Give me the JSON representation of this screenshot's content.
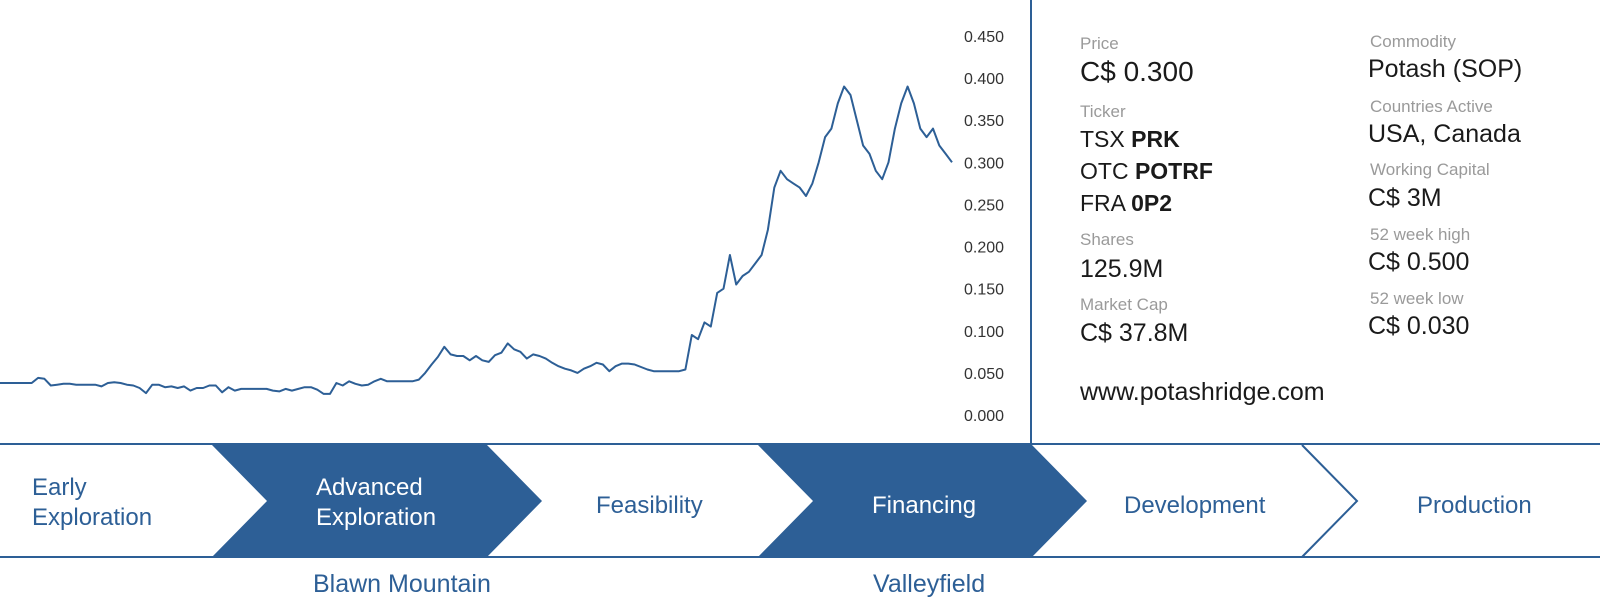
{
  "chart_data": {
    "type": "line",
    "title": "",
    "xlabel": "",
    "ylabel": "",
    "ylim": [
      0,
      0.45
    ],
    "yticks": [
      "0.450",
      "0.400",
      "0.350",
      "0.300",
      "0.250",
      "0.200",
      "0.150",
      "0.100",
      "0.050",
      "0.000"
    ],
    "grid": false,
    "color": "#2d5f96",
    "x": [
      0,
      1,
      2,
      3,
      4,
      5,
      6,
      7,
      8,
      9,
      10,
      11,
      12,
      13,
      14,
      15,
      16,
      17,
      18,
      19,
      20,
      21,
      22,
      23,
      24,
      25,
      26,
      27,
      28,
      29,
      30,
      31,
      32,
      33,
      34,
      35,
      36,
      37,
      38,
      39,
      40,
      41,
      42,
      43,
      44,
      45,
      46,
      47,
      48,
      49,
      50,
      51,
      52,
      53,
      54,
      55,
      56,
      57,
      58,
      59,
      60,
      61,
      62,
      63,
      64,
      65,
      66,
      67,
      68,
      69,
      70,
      71,
      72,
      73,
      74,
      75,
      76,
      77,
      78,
      79,
      80,
      81,
      82,
      83,
      84,
      85,
      86,
      87,
      88,
      89,
      90,
      91,
      92,
      93,
      94,
      95,
      96,
      97,
      98,
      99,
      100,
      101,
      102,
      103,
      104,
      105,
      106,
      107,
      108,
      109,
      110,
      111,
      112,
      113,
      114,
      115,
      116,
      117,
      118,
      119,
      120,
      121,
      122,
      123,
      124,
      125,
      126,
      127,
      128,
      129,
      130,
      131,
      132,
      133,
      134,
      135,
      136,
      137,
      138,
      139,
      140,
      141,
      142,
      143,
      144,
      145,
      146,
      147,
      148,
      149,
      150
    ],
    "values": [
      0.038,
      0.038,
      0.038,
      0.038,
      0.038,
      0.038,
      0.044,
      0.043,
      0.035,
      0.036,
      0.037,
      0.037,
      0.036,
      0.036,
      0.036,
      0.036,
      0.034,
      0.038,
      0.039,
      0.038,
      0.036,
      0.035,
      0.032,
      0.026,
      0.036,
      0.036,
      0.033,
      0.034,
      0.032,
      0.034,
      0.029,
      0.032,
      0.032,
      0.035,
      0.035,
      0.027,
      0.033,
      0.029,
      0.031,
      0.031,
      0.031,
      0.031,
      0.031,
      0.029,
      0.028,
      0.031,
      0.029,
      0.031,
      0.033,
      0.033,
      0.03,
      0.025,
      0.025,
      0.038,
      0.035,
      0.04,
      0.037,
      0.035,
      0.036,
      0.04,
      0.043,
      0.04,
      0.04,
      0.04,
      0.04,
      0.04,
      0.042,
      0.05,
      0.06,
      0.069,
      0.081,
      0.072,
      0.07,
      0.07,
      0.065,
      0.07,
      0.065,
      0.063,
      0.071,
      0.074,
      0.085,
      0.078,
      0.075,
      0.067,
      0.072,
      0.07,
      0.067,
      0.062,
      0.058,
      0.055,
      0.053,
      0.05,
      0.055,
      0.058,
      0.062,
      0.06,
      0.052,
      0.058,
      0.061,
      0.061,
      0.06,
      0.057,
      0.054,
      0.052,
      0.052,
      0.052,
      0.052,
      0.052,
      0.054,
      0.095,
      0.09,
      0.11,
      0.105,
      0.145,
      0.15,
      0.19,
      0.155,
      0.165,
      0.17,
      0.18,
      0.19,
      0.22,
      0.27,
      0.29,
      0.28,
      0.275,
      0.27,
      0.26,
      0.275,
      0.3,
      0.33,
      0.34,
      0.37,
      0.39,
      0.38,
      0.35,
      0.32,
      0.31,
      0.29,
      0.28,
      0.3,
      0.34,
      0.37,
      0.39,
      0.37,
      0.34,
      0.33,
      0.34,
      0.32,
      0.31,
      0.3
    ]
  },
  "price": {
    "label": "Price",
    "value": "C$ 0.300"
  },
  "ticker": {
    "label": "Ticker",
    "lines": [
      {
        "exchange": "TSX",
        "symbol": "PRK"
      },
      {
        "exchange": "OTC",
        "symbol": "POTRF"
      },
      {
        "exchange": "FRA",
        "symbol": "0P2"
      }
    ]
  },
  "shares": {
    "label": "Shares",
    "value": "125.9M"
  },
  "market_cap": {
    "label": "Market Cap",
    "value": "C$ 37.8M"
  },
  "commodity": {
    "label": "Commodity",
    "value": "Potash (SOP)"
  },
  "countries": {
    "label": "Countries Active",
    "value": "USA, Canada"
  },
  "working_capital": {
    "label": "Working Capital",
    "value": "C$ 3M"
  },
  "week_high": {
    "label": "52 week high",
    "value": "C$ 0.500"
  },
  "week_low": {
    "label": "52 week low",
    "value": "C$ 0.030"
  },
  "website": "www.potashridge.com",
  "pipeline": {
    "accent": "#2d5f96",
    "stages": [
      {
        "line1": "Early",
        "line2": "Exploration",
        "highlighted": false
      },
      {
        "line1": "Advanced",
        "line2": "Exploration",
        "highlighted": true
      },
      {
        "line1": "Feasibility",
        "line2": "",
        "highlighted": false
      },
      {
        "line1": "Financing",
        "line2": "",
        "highlighted": true
      },
      {
        "line1": "Development",
        "line2": "",
        "highlighted": false
      },
      {
        "line1": "Production",
        "line2": "",
        "highlighted": false
      }
    ]
  },
  "projects": [
    "Blawn Mountain",
    "Valleyfield"
  ]
}
